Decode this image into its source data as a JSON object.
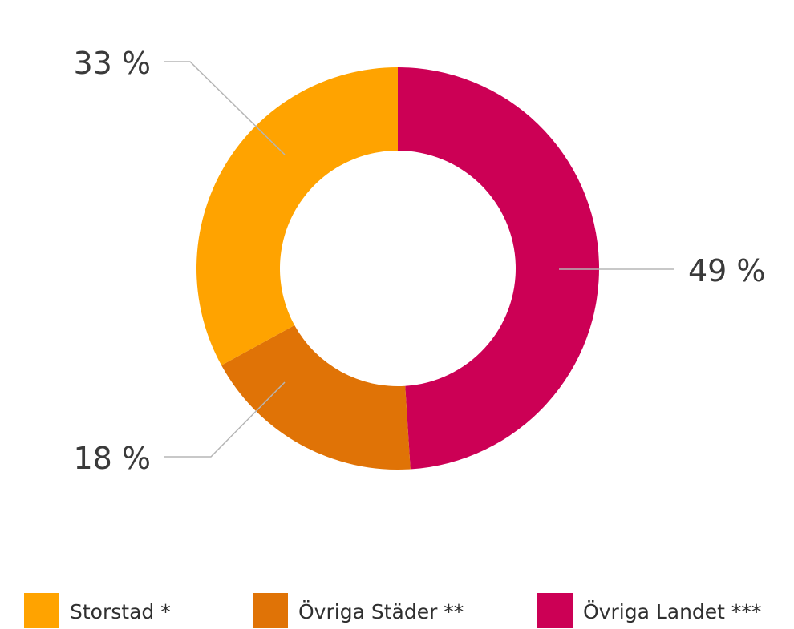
{
  "chart_data": {
    "type": "pie",
    "variant": "donut",
    "title": "",
    "legend_position": "bottom",
    "slices": [
      {
        "label": "Övriga Landet ***",
        "value": 49,
        "value_label": "49 %",
        "color": "#cc0055"
      },
      {
        "label": "Övriga Städer **",
        "value": 18,
        "value_label": "18 %",
        "color": "#e07306"
      },
      {
        "label": "Storstad *",
        "value": 33,
        "value_label": "33 %",
        "color": "#ffa300"
      }
    ],
    "legend": [
      {
        "label": "Storstad *",
        "color": "#ffa300"
      },
      {
        "label": "Övriga Städer **",
        "color": "#e07306"
      },
      {
        "label": "Övriga Landet ***",
        "color": "#cc0055"
      }
    ]
  }
}
